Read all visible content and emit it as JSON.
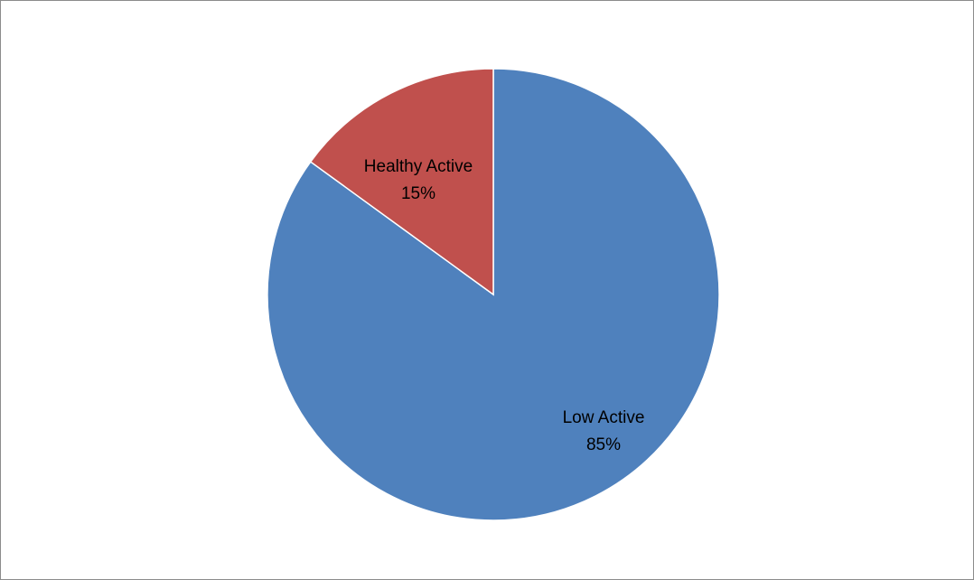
{
  "chart_data": {
    "type": "pie",
    "title": "",
    "start_angle_deg": 0,
    "direction": "clockwise",
    "slices": [
      {
        "name": "Low Active",
        "percent_label": "85%",
        "value": 85,
        "color": "#4F81BD"
      },
      {
        "name": "Healthy Active",
        "percent_label": "15%",
        "value": 15,
        "color": "#C0504D"
      }
    ],
    "legend": "none"
  }
}
